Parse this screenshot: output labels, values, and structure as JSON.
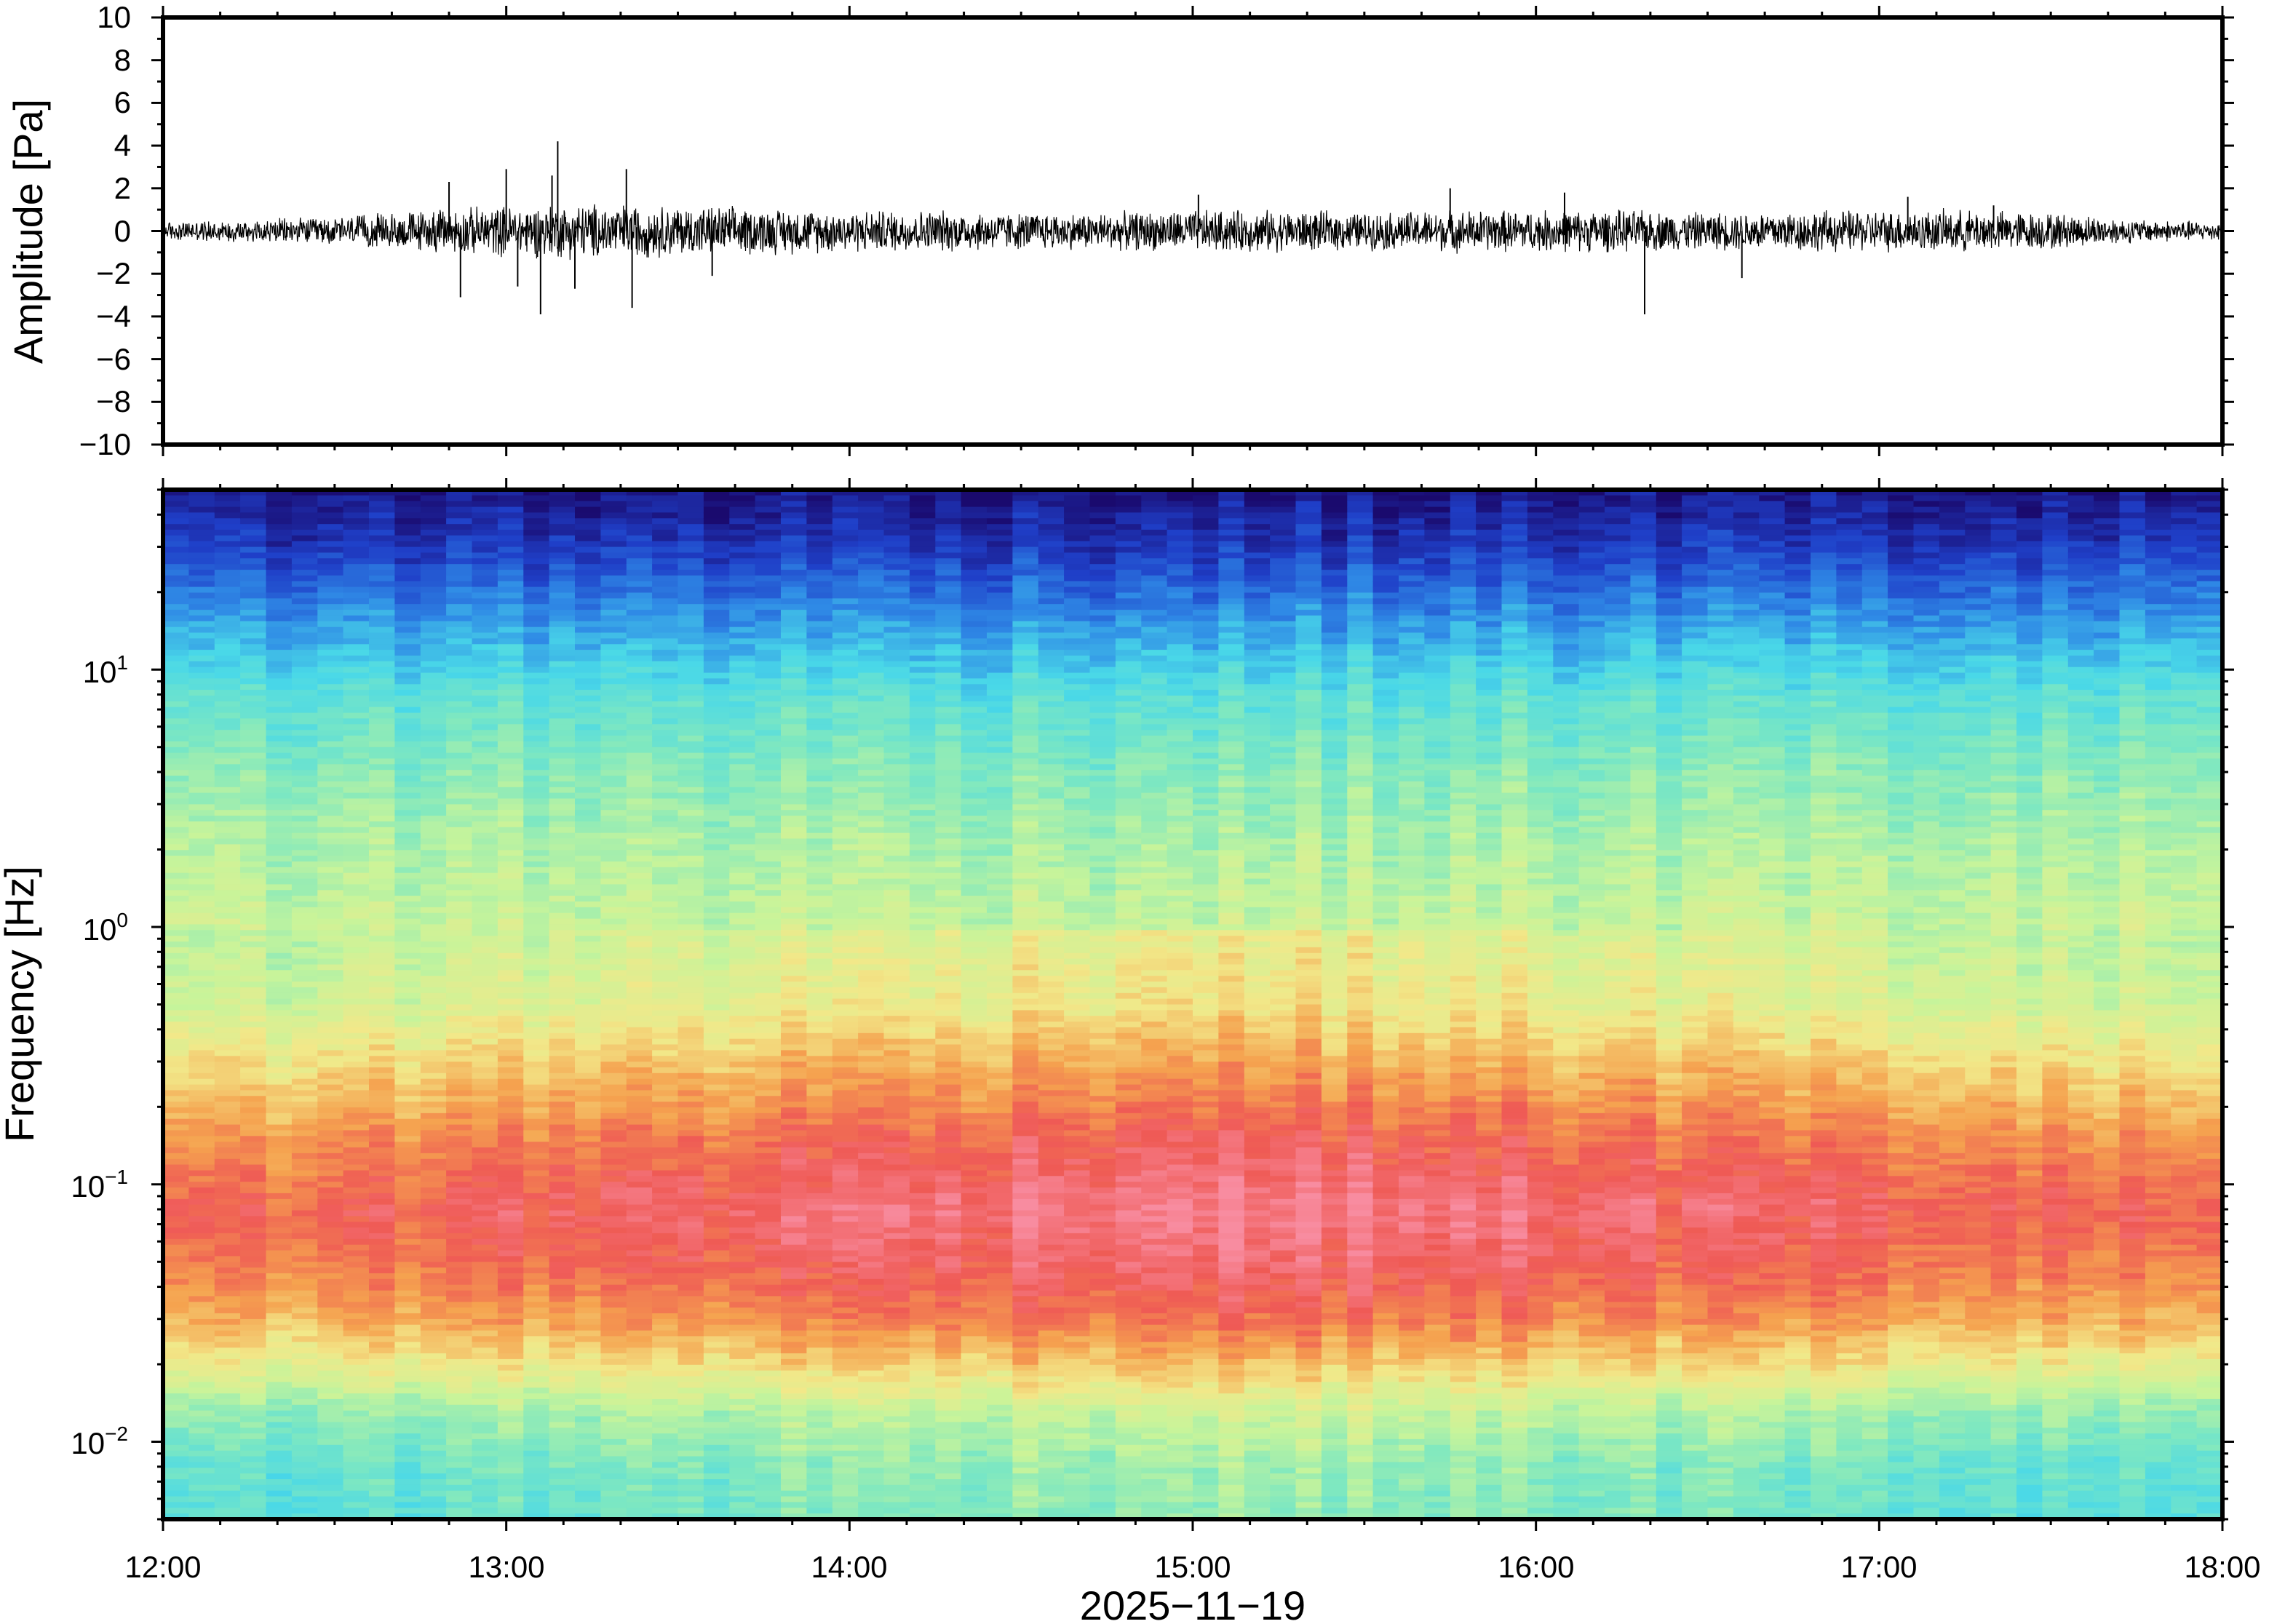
{
  "chart_data": [
    {
      "type": "line",
      "panel": "waveform",
      "ylabel": "Amplitude [Pa]",
      "ylim": [
        -10,
        10
      ],
      "yticks": [
        10,
        8,
        6,
        4,
        2,
        0,
        -2,
        -4,
        -6,
        -8,
        -10
      ],
      "ytick_labels": [
        "10",
        "8",
        "6",
        "4",
        "2",
        "0",
        "−2",
        "−4",
        "−6",
        "−8",
        "−10"
      ],
      "xlim": [
        "12:00",
        "18:00"
      ],
      "envelope": {
        "x": [
          "12:00",
          "12:15",
          "12:30",
          "12:45",
          "13:00",
          "13:15",
          "13:30",
          "13:45",
          "14:00",
          "14:15",
          "14:30",
          "14:45",
          "15:00",
          "15:15",
          "15:30",
          "15:45",
          "16:00",
          "16:15",
          "16:30",
          "16:45",
          "17:00",
          "17:15",
          "17:30",
          "17:45",
          "18:00"
        ],
        "typical_peak": [
          0.4,
          0.5,
          0.6,
          0.9,
          1.1,
          1.2,
          1.1,
          1.0,
          0.9,
          0.9,
          0.8,
          0.8,
          0.9,
          0.9,
          0.8,
          0.9,
          0.9,
          0.9,
          0.8,
          0.9,
          0.9,
          0.9,
          0.8,
          0.5,
          0.4
        ]
      },
      "spikes": [
        {
          "x": "12:50",
          "y": 2.3
        },
        {
          "x": "12:52",
          "y": -3.1
        },
        {
          "x": "13:00",
          "y": 2.9
        },
        {
          "x": "13:02",
          "y": -2.6
        },
        {
          "x": "13:06",
          "y": -3.9
        },
        {
          "x": "13:08",
          "y": 2.6
        },
        {
          "x": "13:09",
          "y": 4.2
        },
        {
          "x": "13:12",
          "y": -2.7
        },
        {
          "x": "13:21",
          "y": 2.9
        },
        {
          "x": "13:22",
          "y": -3.6
        },
        {
          "x": "13:36",
          "y": -2.1
        },
        {
          "x": "15:01",
          "y": 1.7
        },
        {
          "x": "15:45",
          "y": 2.0
        },
        {
          "x": "16:05",
          "y": 1.8
        },
        {
          "x": "16:19",
          "y": -3.9
        },
        {
          "x": "16:36",
          "y": -2.2
        },
        {
          "x": "17:05",
          "y": 1.6
        },
        {
          "x": "17:20",
          "y": 1.2
        }
      ]
    },
    {
      "type": "heatmap",
      "panel": "spectrogram",
      "ylabel": "Frequency [Hz]",
      "xlabel": "2025−11−19",
      "yscale": "log",
      "ylim": [
        0.005,
        50
      ],
      "yticks": [
        {
          "value": 10,
          "base": "10",
          "exp": "1"
        },
        {
          "value": 1,
          "base": "10",
          "exp": "0"
        },
        {
          "value": 0.1,
          "base": "10",
          "exp": "−1"
        },
        {
          "value": 0.01,
          "base": "10",
          "exp": "−2"
        }
      ],
      "xticks": [
        "12:00",
        "13:00",
        "14:00",
        "15:00",
        "16:00",
        "17:00",
        "18:00"
      ],
      "colormap": [
        "#1a0a6e",
        "#1f3fc8",
        "#2f8ae6",
        "#49d8e8",
        "#7fe8c0",
        "#c8f49a",
        "#f2e889",
        "#f5a24f",
        "#ef5a55",
        "#f88ca0"
      ],
      "band_levels": {
        "frequency_hz": [
          50,
          30,
          15,
          8,
          4,
          2,
          1,
          0.5,
          0.3,
          0.15,
          0.08,
          0.05,
          0.03,
          0.02,
          0.013,
          0.008,
          0.005
        ],
        "level": [
          0.02,
          0.1,
          0.25,
          0.38,
          0.46,
          0.52,
          0.56,
          0.6,
          0.7,
          0.82,
          0.9,
          0.86,
          0.78,
          0.66,
          0.5,
          0.42,
          0.4
        ]
      }
    }
  ]
}
